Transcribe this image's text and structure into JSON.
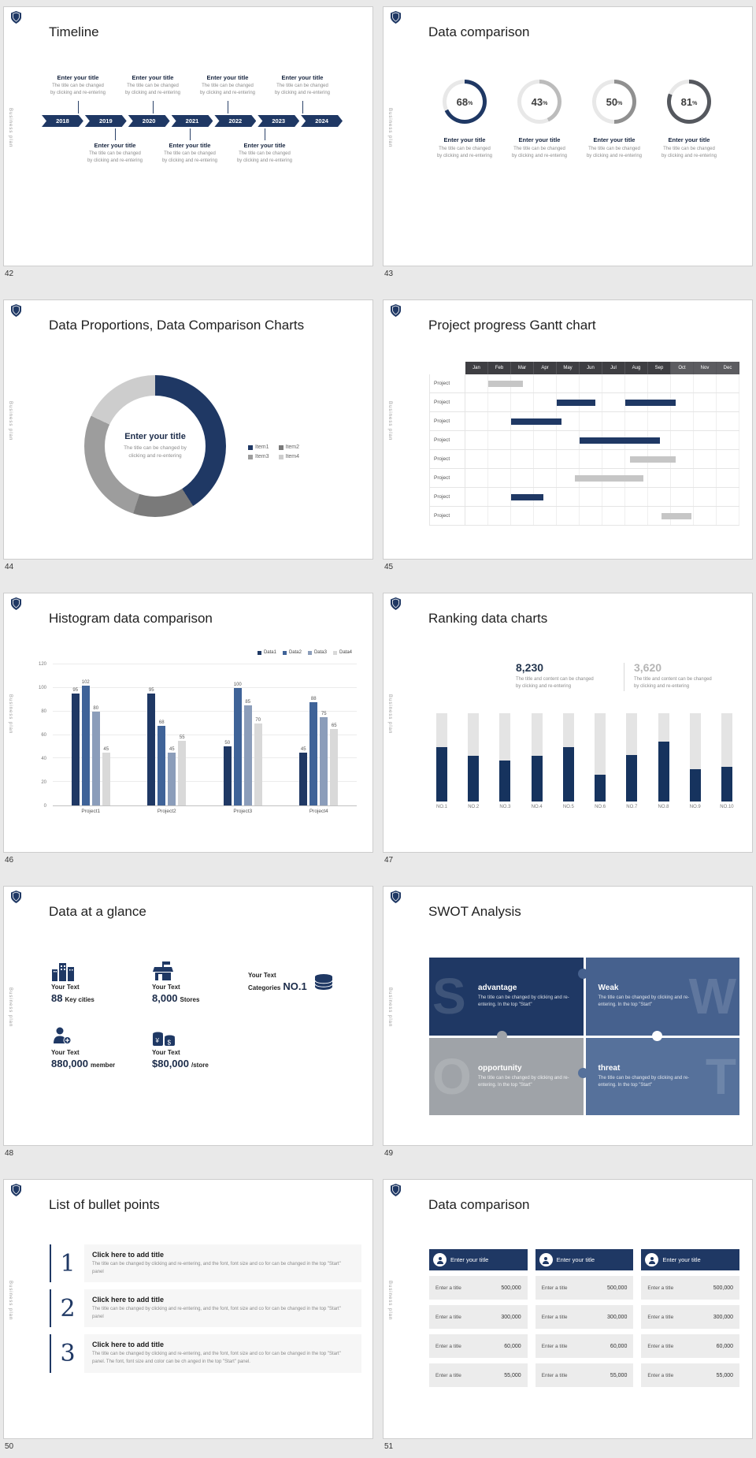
{
  "page": {
    "background": "#e9e9e9",
    "accent": "#1f3864"
  },
  "common": {
    "sidebar_label": "Business plan",
    "enter_title": "Enter your title",
    "caption_line1": "The title can be changed",
    "caption_line2": "by clicking and re-entering"
  },
  "slides": {
    "s42": {
      "number": "42",
      "title": "Timeline",
      "years": [
        "2018",
        "2019",
        "2020",
        "2021",
        "2022",
        "2023",
        "2024"
      ]
    },
    "s43": {
      "number": "43",
      "title": "Data comparison",
      "unit": "%"
    },
    "s44": {
      "number": "44",
      "title": "Data Proportions, Data Comparison Charts",
      "center_title": "Enter your title",
      "center_text": "The title can be changed by clicking and re-entering"
    },
    "s45": {
      "number": "45",
      "title": "Project progress Gantt chart"
    },
    "s46": {
      "number": "46",
      "title": "Histogram data comparison"
    },
    "s47": {
      "number": "47",
      "title": "Ranking data charts",
      "stat_left_value": "8,230",
      "stat_right_value": "3,620",
      "stat_caption_line1": "The title and content can be changed",
      "stat_caption_line2": "by clicking and re-entering"
    },
    "s48": {
      "number": "48",
      "title": "Data at a glance",
      "items": [
        {
          "label": "Your Text",
          "big": "88",
          "small": "Key cities"
        },
        {
          "label": "Your Text",
          "big": "8,000",
          "small": "Stores"
        },
        {
          "label": "Your Text",
          "small_first": "Categories",
          "big": "NO.1"
        },
        {
          "label": "Your Text",
          "big": "880,000",
          "small": "member"
        },
        {
          "label": "Your Text",
          "big": "$80,000",
          "small": "/store"
        }
      ]
    },
    "s49": {
      "number": "49",
      "title": "SWOT Analysis",
      "quadrants": [
        {
          "letter": "S",
          "heading": "advantage",
          "body": "The title can be changed by clicking and re-entering. In the top \"Start\"",
          "color": "#1f3864"
        },
        {
          "letter": "W",
          "heading": "Weak",
          "body": "The title can be changed by clicking and re-entering. In the top \"Start\"",
          "color": "#46618e"
        },
        {
          "letter": "O",
          "heading": "opportunity",
          "body": "The title can be changed by clicking and re-entering. In the top \"Start\"",
          "color": "#9fa3a8"
        },
        {
          "letter": "T",
          "heading": "threat",
          "body": "The title can be changed by clicking and re-entering. In the top \"Start\"",
          "color": "#56719b"
        }
      ]
    },
    "s50": {
      "number": "50",
      "title": "List of bullet points",
      "items": [
        {
          "num": "1",
          "heading": "Click here to add title",
          "body": "The title can be changed by clicking and re-entering, and the font, font size and co for can be changed in the top \"Start\" panel"
        },
        {
          "num": "2",
          "heading": "Click here to add title",
          "body": "The title can be changed by clicking and re-entering, and the font, font size and co for can be changed in the top \"Start\" panel"
        },
        {
          "num": "3",
          "heading": "Click here to add title",
          "body": "The title can be changed by clicking and re-entering, and the font, font size and co for can be changed in the top \"Start\" panel. The font, font size and color can be ch anged in the top \"Start\" panel."
        }
      ]
    },
    "s51": {
      "number": "51",
      "title": "Data comparison",
      "columns": [
        {
          "header": "Enter your title",
          "rows": [
            {
              "label": "Enter a title",
              "value": "500,000"
            },
            {
              "label": "Enter a title",
              "value": "300,000"
            },
            {
              "label": "Enter a title",
              "value": "60,000"
            },
            {
              "label": "Enter a title",
              "value": "55,000"
            }
          ]
        },
        {
          "header": "Enter your title",
          "rows": [
            {
              "label": "Enter a title",
              "value": "500,000"
            },
            {
              "label": "Enter a title",
              "value": "300,000"
            },
            {
              "label": "Enter a title",
              "value": "60,000"
            },
            {
              "label": "Enter a title",
              "value": "55,000"
            }
          ]
        },
        {
          "header": "Enter your title",
          "rows": [
            {
              "label": "Enter a title",
              "value": "500,000"
            },
            {
              "label": "Enter a title",
              "value": "300,000"
            },
            {
              "label": "Enter a title",
              "value": "60,000"
            },
            {
              "label": "Enter a title",
              "value": "55,000"
            }
          ]
        }
      ]
    }
  },
  "chart_data": [
    {
      "id": "progress-rings",
      "type": "pie",
      "slide": "43",
      "title": "Data comparison",
      "values": [
        68,
        43,
        50,
        81
      ],
      "unit": "%",
      "ring_colors": [
        "#1f3864",
        "#bcbcbc",
        "#909090",
        "#55585e"
      ],
      "track_color": "#e8e8e8"
    },
    {
      "id": "donut-proportions",
      "type": "pie",
      "slide": "44",
      "title": "Data Proportions, Data Comparison Charts",
      "labels": [
        "Item1",
        "Item2",
        "Item3",
        "Item4"
      ],
      "values": [
        41,
        14,
        27,
        18
      ],
      "colors": [
        "#1f3864",
        "#7a7a7a",
        "#9d9d9d",
        "#cdcdcd"
      ],
      "center_title": "Enter your title",
      "center_text": "The title can be changed by clicking and re-entering",
      "legend_position": "right"
    },
    {
      "id": "gantt",
      "type": "bar",
      "slide": "45",
      "title": "Project progress Gantt chart",
      "columns": [
        "Jan",
        "Feb",
        "Mar",
        "Apr",
        "May",
        "Jun",
        "Jul",
        "Aug",
        "Sep",
        "Oct",
        "Nov",
        "Dec"
      ],
      "rows": [
        "Project",
        "Project",
        "Project",
        "Project",
        "Project",
        "Project",
        "Project",
        "Project"
      ],
      "bars": [
        {
          "row": 0,
          "start": 1,
          "span": 1.5,
          "color": "#c6c6c6"
        },
        {
          "row": 1,
          "start": 4,
          "span": 1.7,
          "color": "#1f3864"
        },
        {
          "row": 1,
          "start": 7,
          "span": 2.2,
          "color": "#1f3864"
        },
        {
          "row": 2,
          "start": 2,
          "span": 2.2,
          "color": "#1f3864"
        },
        {
          "row": 3,
          "start": 5,
          "span": 3.5,
          "color": "#1f3864"
        },
        {
          "row": 4,
          "start": 7.2,
          "span": 2,
          "color": "#c6c6c6"
        },
        {
          "row": 5,
          "start": 4.8,
          "span": 3,
          "color": "#c6c6c6"
        },
        {
          "row": 6,
          "start": 2,
          "span": 1.4,
          "color": "#1f3864"
        },
        {
          "row": 7,
          "start": 8.6,
          "span": 1.3,
          "color": "#c6c6c6"
        }
      ]
    },
    {
      "id": "histogram",
      "type": "bar",
      "slide": "46",
      "title": "Histogram data comparison",
      "categories": [
        "Project1",
        "Project2",
        "Project3",
        "Project4"
      ],
      "series": [
        {
          "name": "Data1",
          "color": "#1f3864",
          "values": [
            95,
            95,
            50,
            45
          ]
        },
        {
          "name": "Data2",
          "color": "#3f6398",
          "values": [
            102,
            68,
            100,
            88
          ]
        },
        {
          "name": "Data3",
          "color": "#8b9dba",
          "values": [
            80,
            45,
            85,
            75
          ]
        },
        {
          "name": "Data4",
          "color": "#d9d9d9",
          "values": [
            45,
            55,
            70,
            65
          ]
        }
      ],
      "ylim": [
        0,
        120
      ],
      "yticks": [
        0,
        20,
        40,
        60,
        80,
        100,
        120
      ],
      "legend_position": "top-right"
    },
    {
      "id": "ranking",
      "type": "bar",
      "slide": "47",
      "title": "Ranking data charts",
      "categories": [
        "NO.1",
        "NO.2",
        "NO.3",
        "NO.4",
        "NO.5",
        "NO.6",
        "NO.7",
        "NO.8",
        "NO.9",
        "NO.10"
      ],
      "values": [
        62,
        52,
        46,
        52,
        62,
        30,
        53,
        68,
        37,
        39
      ],
      "track_value": 100,
      "bar_color": "#16335e",
      "track_color": "#e4e4e4",
      "stat_left": "8,230",
      "stat_right": "3,620"
    }
  ]
}
